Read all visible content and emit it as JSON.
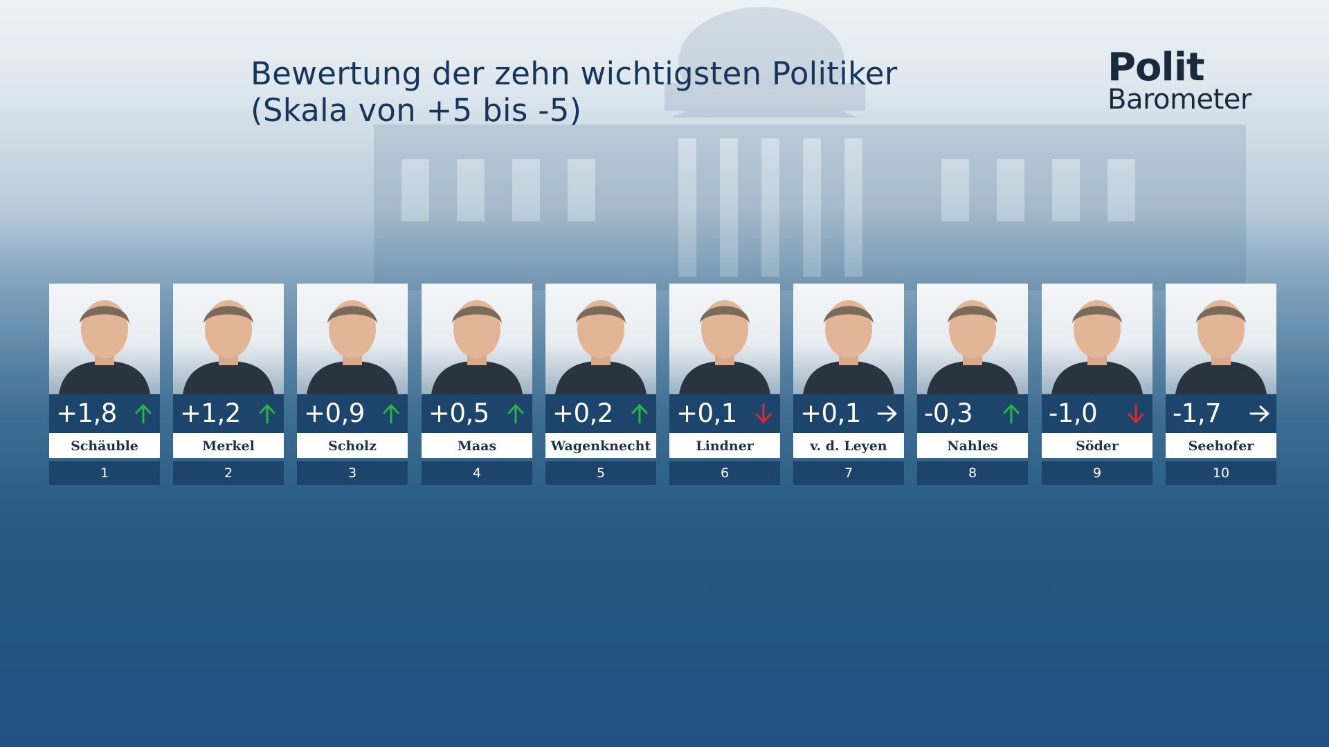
{
  "title": {
    "line1": "Bewertung der zehn wichtigsten Politiker",
    "line2": "(Skala von +5 bis -5)"
  },
  "logo": {
    "word1": "Polit",
    "word2": "Barometer"
  },
  "colors": {
    "up": "#2bb34a",
    "down": "#e3262b",
    "neutral": "#ffffff",
    "panel": "#1d456b"
  },
  "chart_data": {
    "type": "table",
    "scale": [
      5,
      -5
    ],
    "politicians": [
      {
        "rank": "1",
        "name": "Schäuble",
        "score": "+1,8",
        "value": 1.8,
        "trend": "up"
      },
      {
        "rank": "2",
        "name": "Merkel",
        "score": "+1,2",
        "value": 1.2,
        "trend": "up"
      },
      {
        "rank": "3",
        "name": "Scholz",
        "score": "+0,9",
        "value": 0.9,
        "trend": "up"
      },
      {
        "rank": "4",
        "name": "Maas",
        "score": "+0,5",
        "value": 0.5,
        "trend": "up"
      },
      {
        "rank": "5",
        "name": "Wagenknecht",
        "score": "+0,2",
        "value": 0.2,
        "trend": "up"
      },
      {
        "rank": "6",
        "name": "Lindner",
        "score": "+0,1",
        "value": 0.1,
        "trend": "down"
      },
      {
        "rank": "7",
        "name": "v. d. Leyen",
        "score": "+0,1",
        "value": 0.1,
        "trend": "flat"
      },
      {
        "rank": "8",
        "name": "Nahles",
        "score": "-0,3",
        "value": -0.3,
        "trend": "up"
      },
      {
        "rank": "9",
        "name": "Söder",
        "score": "-1,0",
        "value": -1.0,
        "trend": "down"
      },
      {
        "rank": "10",
        "name": "Seehofer",
        "score": "-1,7",
        "value": -1.7,
        "trend": "flat"
      }
    ]
  }
}
